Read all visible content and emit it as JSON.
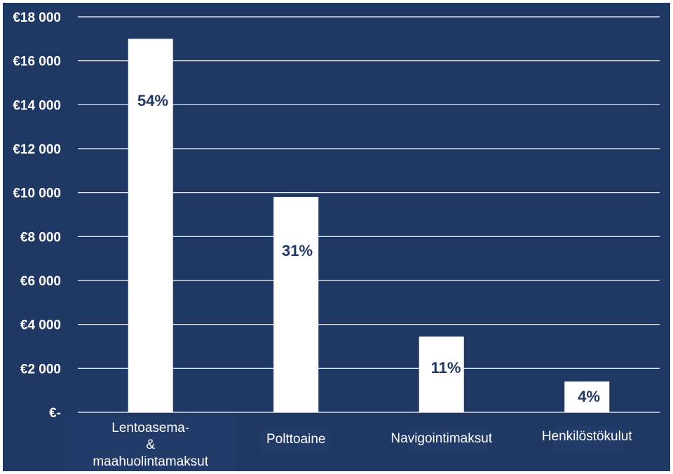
{
  "colors": {
    "background": "#1f3864",
    "bar": "#ffffff",
    "gridline": "#ffffff",
    "label_box": "#223b69",
    "percent_text": "#1f3864"
  },
  "chart_data": {
    "type": "bar",
    "categories": [
      [
        "Lentoasema-",
        "&",
        "maahuolintamaksut"
      ],
      [
        "Polttoaine"
      ],
      [
        "Navigointimaksut"
      ],
      [
        "Henkilöstökulut"
      ]
    ],
    "values": [
      17000,
      9800,
      3450,
      1400
    ],
    "data_labels": [
      "54%",
      "31%",
      "11%",
      "4%"
    ],
    "y_ticks": [
      "€-",
      "€2 000",
      "€4 000",
      "€6 000",
      "€8 000",
      "€10 000",
      "€12 000",
      "€14 000",
      "€16 000",
      "€18 000"
    ],
    "y_tick_values": [
      0,
      2000,
      4000,
      6000,
      8000,
      10000,
      12000,
      14000,
      16000,
      18000
    ],
    "ylim": [
      0,
      18000
    ],
    "grid": true,
    "legend": "none"
  }
}
